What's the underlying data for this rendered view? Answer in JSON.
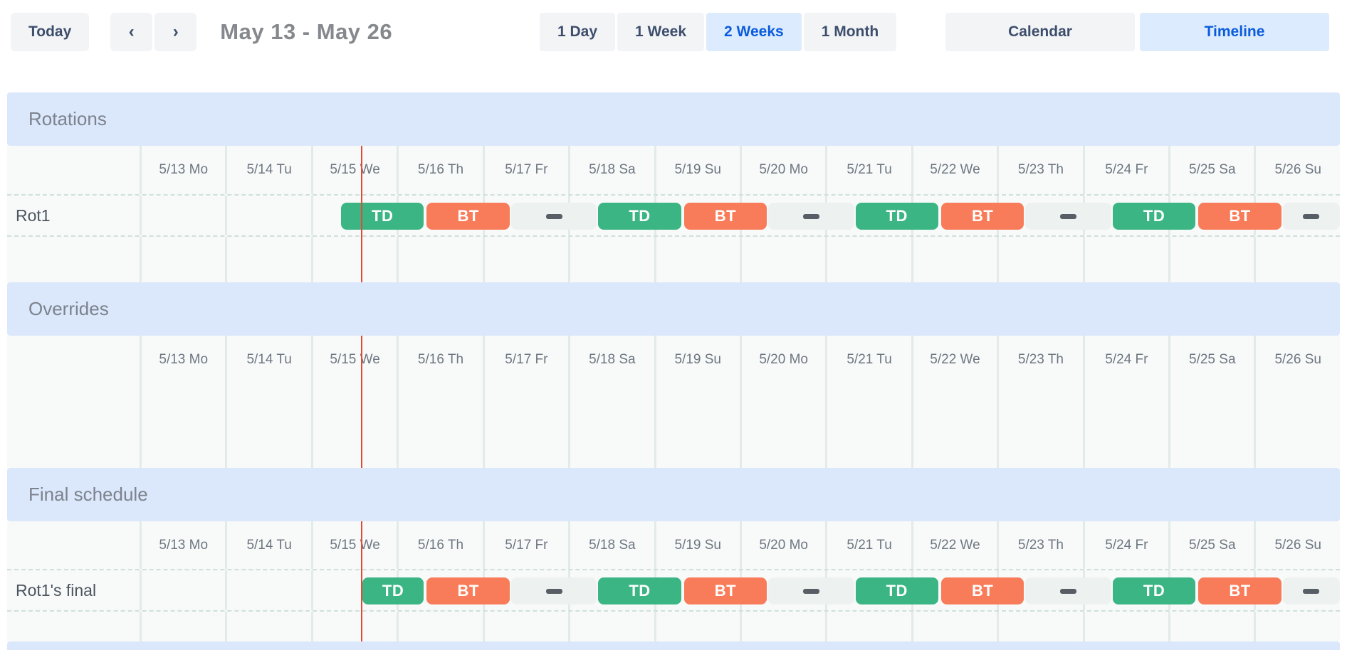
{
  "toolbar": {
    "today": "Today",
    "prev_icon": "‹",
    "next_icon": "›",
    "title": "May 13 - May 26",
    "ranges": [
      {
        "label": "1 Day",
        "selected": false
      },
      {
        "label": "1 Week",
        "selected": false
      },
      {
        "label": "2 Weeks",
        "selected": true
      },
      {
        "label": "1 Month",
        "selected": false
      }
    ],
    "views": [
      {
        "label": "Calendar",
        "selected": false
      },
      {
        "label": "Timeline",
        "selected": true
      }
    ]
  },
  "days": [
    "5/13 Mo",
    "5/14 Tu",
    "5/15 We",
    "5/16 Th",
    "5/17 Fr",
    "5/18 Sa",
    "5/19 Su",
    "5/20 Mo",
    "5/21 Tu",
    "5/22 We",
    "5/23 Th",
    "5/24 Fr",
    "5/25 Sa",
    "5/26 Su"
  ],
  "sections": {
    "rotations": {
      "title": "Rotations",
      "row_label": "Rot1"
    },
    "overrides": {
      "title": "Overrides"
    },
    "final": {
      "title": "Final schedule",
      "row_label": "Rot1's final"
    }
  },
  "schedule": {
    "note_units": "fractional days measured from 5/13 00:00; shifts run 08:00-08:00",
    "now": 2.58,
    "rotation_segments": [
      {
        "type": "TD",
        "start": 2.3333,
        "end": 3.3333
      },
      {
        "type": "BT",
        "start": 3.3333,
        "end": 4.3333
      },
      {
        "type": "gap",
        "start": 4.3333,
        "end": 5.3333
      },
      {
        "type": "TD",
        "start": 5.3333,
        "end": 6.3333
      },
      {
        "type": "BT",
        "start": 6.3333,
        "end": 7.3333
      },
      {
        "type": "gap",
        "start": 7.3333,
        "end": 8.3333
      },
      {
        "type": "TD",
        "start": 8.3333,
        "end": 9.3333
      },
      {
        "type": "BT",
        "start": 9.3333,
        "end": 10.3333
      },
      {
        "type": "gap",
        "start": 10.3333,
        "end": 11.3333
      },
      {
        "type": "TD",
        "start": 11.3333,
        "end": 12.3333
      },
      {
        "type": "BT",
        "start": 12.3333,
        "end": 13.3333
      },
      {
        "type": "gap",
        "start": 13.3333,
        "end": 14.0
      }
    ],
    "final_segments": [
      {
        "type": "TD",
        "start": 2.58,
        "end": 3.3333
      },
      {
        "type": "BT",
        "start": 3.3333,
        "end": 4.3333
      },
      {
        "type": "gap",
        "start": 4.3333,
        "end": 5.3333
      },
      {
        "type": "TD",
        "start": 5.3333,
        "end": 6.3333
      },
      {
        "type": "BT",
        "start": 6.3333,
        "end": 7.3333
      },
      {
        "type": "gap",
        "start": 7.3333,
        "end": 8.3333
      },
      {
        "type": "TD",
        "start": 8.3333,
        "end": 9.3333
      },
      {
        "type": "BT",
        "start": 9.3333,
        "end": 10.3333
      },
      {
        "type": "gap",
        "start": 10.3333,
        "end": 11.3333
      },
      {
        "type": "TD",
        "start": 11.3333,
        "end": 12.3333
      },
      {
        "type": "BT",
        "start": 12.3333,
        "end": 13.3333
      },
      {
        "type": "gap",
        "start": 13.3333,
        "end": 14.0
      }
    ]
  },
  "colors": {
    "td_bar": "#3bb583",
    "bt_bar": "#f97c5a",
    "gap_dash": "#575e66",
    "now_line": "#e34935",
    "section_band": "#dbe7fb",
    "selected_bg": "#dcebfe",
    "selected_text": "#0b5cdd"
  }
}
